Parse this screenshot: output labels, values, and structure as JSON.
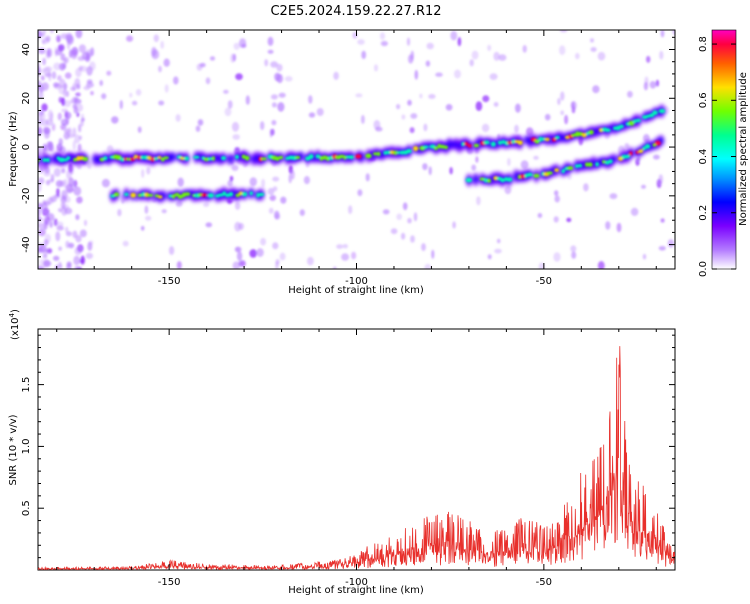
{
  "title": "C2E5.2024.159.22.27.R12",
  "colors": {
    "line": "#e8302c",
    "axis": "#000000",
    "colormap": [
      "#ffffff",
      "#b37bff",
      "#7a00ff",
      "#0000ff",
      "#00c8ff",
      "#00ffb4",
      "#70ff00",
      "#ffe000",
      "#ff6000",
      "#ff0040",
      "#ff00c0"
    ]
  },
  "chart_data": [
    {
      "type": "heatmap",
      "xlabel": "Height of straight line (km)",
      "ylabel": "Frequency (Hz)",
      "xlim": [
        -185,
        -15
      ],
      "ylim": [
        -50,
        48
      ],
      "x_ticks": [
        -150,
        -100,
        -50
      ],
      "y_ticks": [
        -40,
        -20,
        0,
        20,
        40
      ],
      "colorbar": {
        "label": "Normalized spectral amplitude",
        "range": [
          0.0,
          0.85
        ],
        "ticks": [
          0.0,
          0.2,
          0.4,
          0.6,
          0.8
        ],
        "tick_labels": [
          "0.0",
          "0.2",
          "0.4",
          "0.6",
          "0.8"
        ]
      },
      "ridges": [
        {
          "name": "main",
          "points": [
            [
              -185,
              -5
            ],
            [
              -160,
              -4.5
            ],
            [
              -140,
              -4.5
            ],
            [
              -120,
              -4.5
            ],
            [
              -100,
              -4
            ],
            [
              -90,
              -2.5
            ],
            [
              -80,
              0
            ],
            [
              -70,
              1
            ],
            [
              -60,
              2
            ],
            [
              -50,
              3
            ],
            [
              -40,
              5
            ],
            [
              -30,
              8
            ],
            [
              -25,
              11
            ],
            [
              -18,
              15
            ]
          ]
        },
        {
          "name": "lower",
          "points": [
            [
              -165,
              -20
            ],
            [
              -150,
              -20
            ],
            [
              -140,
              -19.5
            ],
            [
              -125,
              -19.5
            ]
          ]
        },
        {
          "name": "lower-right",
          "points": [
            [
              -70,
              -14
            ],
            [
              -60,
              -13
            ],
            [
              -50,
              -11
            ],
            [
              -40,
              -8
            ],
            [
              -30,
              -5
            ],
            [
              -25,
              -2
            ],
            [
              -18,
              3
            ]
          ]
        }
      ]
    },
    {
      "type": "line",
      "xlabel": "Height of straight line (km)",
      "ylabel": "SNR (10 * v/v)",
      "multiplier": "(x10",
      "multiplier_exp": "4",
      "multiplier_close": ")",
      "xlim": [
        -185,
        -15
      ],
      "ylim": [
        0,
        1.95
      ],
      "x_ticks": [
        -150,
        -100,
        -50
      ],
      "y_ticks": [
        0.5,
        1.0,
        1.5
      ],
      "y_tick_labels": [
        "0.5",
        "1.0",
        "1.5"
      ],
      "series": [
        {
          "envelope": [
            [
              -185,
              0.02
            ],
            [
              -160,
              0.03
            ],
            [
              -150,
              0.08
            ],
            [
              -140,
              0.05
            ],
            [
              -120,
              0.04
            ],
            [
              -105,
              0.08
            ],
            [
              -100,
              0.15
            ],
            [
              -90,
              0.3
            ],
            [
              -80,
              0.45
            ],
            [
              -75,
              0.5
            ],
            [
              -70,
              0.4
            ],
            [
              -65,
              0.3
            ],
            [
              -60,
              0.35
            ],
            [
              -55,
              0.45
            ],
            [
              -50,
              0.35
            ],
            [
              -45,
              0.5
            ],
            [
              -40,
              0.8
            ],
            [
              -35,
              1.0
            ],
            [
              -32,
              1.4
            ],
            [
              -30,
              1.92
            ],
            [
              -28,
              1.3
            ],
            [
              -25,
              0.75
            ],
            [
              -20,
              0.6
            ],
            [
              -17,
              0.25
            ],
            [
              -15,
              0.15
            ]
          ]
        }
      ]
    }
  ]
}
